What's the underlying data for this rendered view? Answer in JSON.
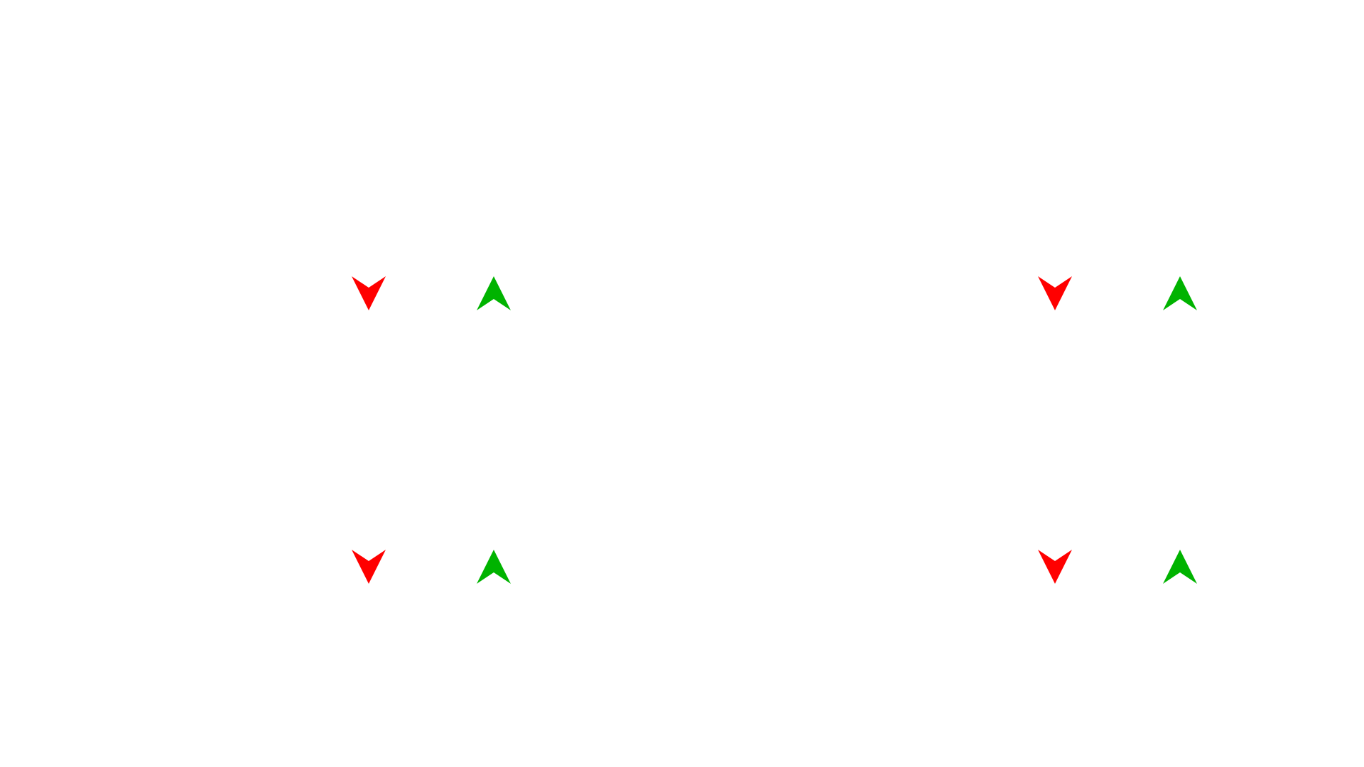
{
  "arrow_groups": [
    {
      "id": "g1",
      "icons": [
        "arrow-down-icon",
        "arrow-up-icon"
      ]
    },
    {
      "id": "g2",
      "icons": [
        "arrow-down-icon",
        "arrow-up-icon"
      ]
    },
    {
      "id": "g3",
      "icons": [
        "arrow-down-icon",
        "arrow-up-icon"
      ]
    },
    {
      "id": "g4",
      "icons": [
        "arrow-down-icon",
        "arrow-up-icon"
      ]
    }
  ],
  "colors": {
    "down_arrow": "#ff0000",
    "up_arrow": "#00b300",
    "background": "#ffffff"
  }
}
